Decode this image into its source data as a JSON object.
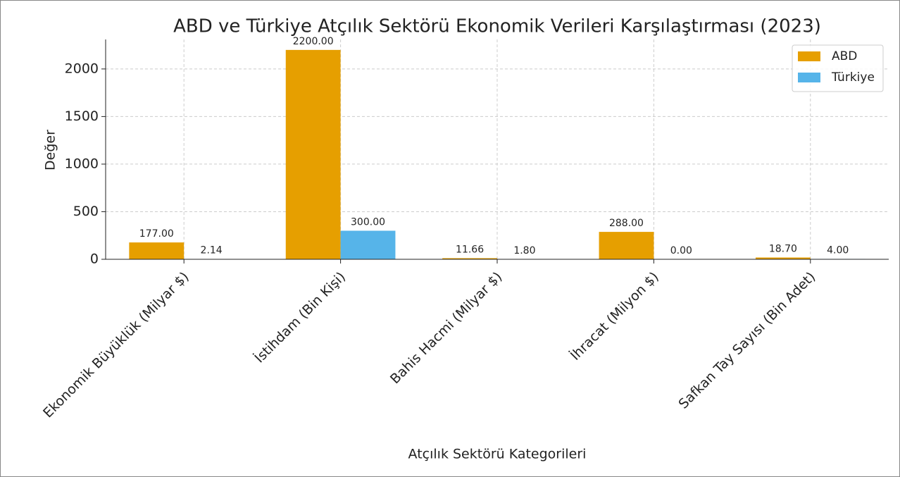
{
  "chart_data": {
    "type": "bar",
    "title": "ABD ve Türkiye Atçılık Sektörü Ekonomik Verileri Karşılaştırması (2023)",
    "x_label": "Atçılık Sektörü Kategorileri",
    "y_label": "Değer",
    "categories": [
      "Ekonomik Büyüklük (Milyar $)",
      "İstihdam (Bin Kişi)",
      "Bahis Hacmi (Milyar $)",
      "İhracat (Milyon $)",
      "Safkan Tay Sayısı (Bin Adet)"
    ],
    "series": [
      {
        "name": "ABD",
        "color": "#E69F00",
        "values": [
          177,
          2200,
          11.66,
          288,
          18.7
        ],
        "value_labels": [
          "177.00",
          "2200.00",
          "11.66",
          "288.00",
          "18.70"
        ]
      },
      {
        "name": "Türkiye",
        "color": "#56B4E9",
        "values": [
          2.14,
          300,
          1.8,
          0,
          4
        ],
        "value_labels": [
          "2.14",
          "300.00",
          "1.80",
          "0.00",
          "4.00"
        ]
      }
    ],
    "ylim": [
      0,
      2310
    ],
    "yticks": [
      0,
      500,
      1000,
      1500,
      2000
    ],
    "grid": true,
    "legend": "upper right"
  }
}
